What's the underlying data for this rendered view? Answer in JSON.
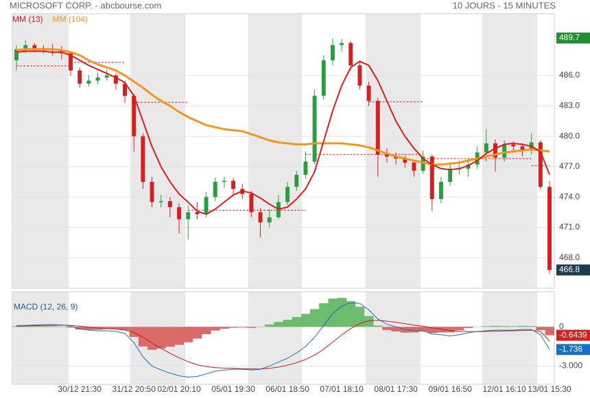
{
  "chart_data": {
    "type": "candlestick",
    "title": "MICROSOFT CORP. - abcbourse.com",
    "subtitle": "10 JOURS - 15 MINUTES",
    "categories": [
      null,
      null,
      null,
      null,
      null,
      null,
      null,
      "30/12 21:30",
      null,
      null,
      null,
      null,
      null,
      "31/12 20:50",
      null,
      null,
      null,
      null,
      "02/01 20:10",
      null,
      null,
      null,
      null,
      null,
      "05/01 19:30",
      null,
      null,
      null,
      null,
      null,
      "06/01 18:50",
      null,
      null,
      null,
      null,
      null,
      "07/01 18:10",
      null,
      null,
      null,
      null,
      null,
      "08/01 17:30",
      null,
      null,
      null,
      null,
      null,
      "09/01 16:50",
      null,
      null,
      null,
      null,
      null,
      "12/01 16:10",
      null,
      null,
      null,
      null,
      "13/01 15:30"
    ],
    "ohlc": [
      [
        487.5,
        489.0,
        486.5,
        488.6
      ],
      [
        488.6,
        489.5,
        488.2,
        489.0
      ],
      [
        489.0,
        489.2,
        488.3,
        488.7
      ],
      [
        488.7,
        489.0,
        488.2,
        488.6
      ],
      [
        488.6,
        489.1,
        488.0,
        488.5
      ],
      [
        488.5,
        488.9,
        487.6,
        488.2
      ],
      [
        488.2,
        488.4,
        486.0,
        486.5
      ],
      [
        486.5,
        486.8,
        484.8,
        485.2
      ],
      [
        485.2,
        486.0,
        484.9,
        485.5
      ],
      [
        485.5,
        486.3,
        485.1,
        485.8
      ],
      [
        485.8,
        486.6,
        485.5,
        486.0
      ],
      [
        486.0,
        486.2,
        484.6,
        485.2
      ],
      [
        485.2,
        485.5,
        483.3,
        484.0
      ],
      [
        484.0,
        484.2,
        478.5,
        480.0
      ],
      [
        480.0,
        480.3,
        474.8,
        475.5
      ],
      [
        475.5,
        476.0,
        473.0,
        473.5
      ],
      [
        473.5,
        474.2,
        473.0,
        473.6
      ],
      [
        473.6,
        474.0,
        472.0,
        473.0
      ],
      [
        473.0,
        473.4,
        470.4,
        471.8
      ],
      [
        471.8,
        473.2,
        469.8,
        472.5
      ],
      [
        472.5,
        473.5,
        471.8,
        472.3
      ],
      [
        472.3,
        474.5,
        472.0,
        474.0
      ],
      [
        474.0,
        475.9,
        473.6,
        475.5
      ],
      [
        475.5,
        476.0,
        474.9,
        475.6
      ],
      [
        475.6,
        475.9,
        474.2,
        474.8
      ],
      [
        474.8,
        475.3,
        473.8,
        474.3
      ],
      [
        474.3,
        474.6,
        472.0,
        472.5
      ],
      [
        472.5,
        472.9,
        470.0,
        471.5
      ],
      [
        471.5,
        472.8,
        471.0,
        472.0
      ],
      [
        472.0,
        474.2,
        471.8,
        473.5
      ],
      [
        473.5,
        475.5,
        473.2,
        475.0
      ],
      [
        475.0,
        476.6,
        474.6,
        476.2
      ],
      [
        476.2,
        478.5,
        475.8,
        477.5
      ],
      [
        477.5,
        484.6,
        477.2,
        484.0
      ],
      [
        484.0,
        488.0,
        483.6,
        487.5
      ],
      [
        487.5,
        489.7,
        487.0,
        489.0
      ],
      [
        489.0,
        489.6,
        488.4,
        489.2
      ],
      [
        489.2,
        489.4,
        486.5,
        487.0
      ],
      [
        487.0,
        487.4,
        484.6,
        485.0
      ],
      [
        485.0,
        485.4,
        483.0,
        483.5
      ],
      [
        483.5,
        483.8,
        476.0,
        478.2
      ],
      [
        478.2,
        478.8,
        477.4,
        478.0
      ],
      [
        478.0,
        478.4,
        477.2,
        477.8
      ],
      [
        477.8,
        478.1,
        476.9,
        477.4
      ],
      [
        477.4,
        477.6,
        476.0,
        476.6
      ],
      [
        476.6,
        478.6,
        476.3,
        478.0
      ],
      [
        478.0,
        478.2,
        472.6,
        473.8
      ],
      [
        473.8,
        476.0,
        473.4,
        475.5
      ],
      [
        475.5,
        477.2,
        475.1,
        476.8
      ],
      [
        476.8,
        477.6,
        476.2,
        476.8
      ],
      [
        476.8,
        477.8,
        476.0,
        477.2
      ],
      [
        477.2,
        479.0,
        476.8,
        478.4
      ],
      [
        478.4,
        480.7,
        477.5,
        479.3
      ],
      [
        479.3,
        479.7,
        476.5,
        477.9
      ],
      [
        477.9,
        479.6,
        477.5,
        479.2
      ],
      [
        479.2,
        479.5,
        478.4,
        479.0
      ],
      [
        479.0,
        479.3,
        478.0,
        478.6
      ],
      [
        478.6,
        480.3,
        478.2,
        479.4
      ],
      [
        479.4,
        479.6,
        474.8,
        475.0
      ],
      [
        475.0,
        475.6,
        466.4,
        466.8
      ]
    ],
    "up_color": "#2a9d3f",
    "down_color": "#d42020",
    "ylim": [
      465.0,
      492.1
    ],
    "yticks": [
      {
        "value": 468,
        "label": "468.0"
      },
      {
        "value": 471,
        "label": "471.0"
      },
      {
        "value": 474,
        "label": "474.0"
      },
      {
        "value": 477,
        "label": "477.0"
      },
      {
        "value": 480,
        "label": "480.0"
      },
      {
        "value": 483,
        "label": "483.0"
      },
      {
        "value": 486,
        "label": "486.0"
      }
    ],
    "grid": true,
    "overlays": [
      {
        "name": "MM (13)",
        "color": "#e31a1a",
        "values": [
          488.3,
          488.4,
          488.4,
          488.4,
          488.3,
          488.3,
          488.0,
          487.5,
          487.0,
          486.6,
          486.2,
          485.8,
          485.3,
          484.0,
          481.5,
          479.0,
          477.0,
          475.5,
          474.3,
          473.5,
          472.6,
          472.3,
          472.8,
          473.5,
          474.2,
          474.6,
          474.4,
          473.9,
          473.3,
          472.8,
          473.0,
          473.8,
          474.8,
          476.5,
          479.5,
          482.5,
          485.0,
          486.8,
          487.4,
          487.0,
          485.5,
          483.5,
          481.5,
          480.0,
          478.8,
          477.8,
          477.2,
          476.8,
          476.7,
          476.8,
          477.1,
          477.6,
          478.3,
          478.8,
          479.2,
          479.3,
          479.2,
          479.0,
          478.5,
          476.2
        ]
      },
      {
        "name": "MM (104)",
        "color": "#f7941d",
        "values": [
          488.5,
          488.6,
          488.6,
          488.6,
          488.6,
          488.5,
          488.3,
          488.0,
          487.5,
          487.1,
          486.8,
          486.5,
          486.0,
          485.4,
          484.8,
          484.1,
          483.5,
          483.0,
          482.4,
          481.9,
          481.5,
          481.1,
          480.9,
          480.7,
          480.6,
          480.5,
          480.2,
          479.9,
          479.6,
          479.4,
          479.3,
          479.2,
          479.2,
          479.3,
          479.3,
          479.3,
          479.3,
          479.2,
          479.1,
          478.9,
          478.6,
          478.3,
          478.0,
          477.8,
          477.6,
          477.4,
          477.2,
          477.2,
          477.3,
          477.4,
          477.6,
          477.8,
          478.0,
          478.2,
          478.4,
          478.5,
          478.6,
          478.7,
          478.6,
          478.5
        ]
      }
    ],
    "levels": {
      "color": "#d42020",
      "items": [
        {
          "value": 487.3,
          "from": 6,
          "to": 12
        },
        {
          "value": 486.95,
          "from": 0,
          "to": 6
        },
        {
          "value": 483.35,
          "from": 13,
          "to": 19
        },
        {
          "value": 472.7,
          "from": 19,
          "to": 32
        },
        {
          "value": 478.2,
          "from": 32,
          "to": 45
        },
        {
          "value": 483.4,
          "from": 39,
          "to": 45
        },
        {
          "value": 477.8,
          "from": 45,
          "to": 57
        },
        {
          "value": 477.1,
          "from": 57,
          "to": 59
        }
      ]
    },
    "high_label": {
      "value": 489.7,
      "label": "489.7",
      "color": "#1f8f2f"
    },
    "last_label": {
      "value": 466.8,
      "label": "466.8",
      "color": "#1c3d4f"
    },
    "macd": {
      "title": "MACD (12, 26, 9)",
      "ylim": [
        -4.4,
        2.7
      ],
      "yticks": [
        0,
        {
          "value": -3,
          "label": "-3.000"
        }
      ],
      "macd": {
        "color": "#1a6fc4",
        "last_label": "-1.736",
        "values": [
          0.1,
          0.12,
          0.15,
          0.17,
          0.17,
          0.15,
          0.05,
          -0.15,
          -0.25,
          -0.3,
          -0.3,
          -0.35,
          -0.5,
          -1.2,
          -2.3,
          -3.0,
          -3.3,
          -3.55,
          -3.75,
          -3.85,
          -3.8,
          -3.6,
          -3.4,
          -3.3,
          -3.25,
          -3.25,
          -3.3,
          -3.25,
          -3.0,
          -2.7,
          -2.4,
          -2.0,
          -1.5,
          -0.8,
          0.1,
          1.0,
          1.6,
          1.85,
          1.8,
          1.3,
          0.6,
          0.2,
          0.0,
          -0.2,
          -0.3,
          -0.3,
          -0.55,
          -0.6,
          -0.7,
          -0.6,
          -0.45,
          -0.35,
          -0.3,
          -0.25,
          -0.25,
          -0.25,
          -0.2,
          -0.2,
          -0.6,
          -1.736
        ]
      },
      "signal": {
        "color": "#c81e1e",
        "values": [
          0.05,
          0.07,
          0.09,
          0.11,
          0.12,
          0.13,
          0.11,
          0.05,
          -0.02,
          -0.08,
          -0.13,
          -0.17,
          -0.24,
          -0.43,
          -0.8,
          -1.24,
          -1.65,
          -2.03,
          -2.37,
          -2.67,
          -2.9,
          -3.04,
          -3.12,
          -3.16,
          -3.18,
          -3.2,
          -3.22,
          -3.23,
          -3.18,
          -3.08,
          -2.94,
          -2.75,
          -2.5,
          -2.16,
          -1.71,
          -1.17,
          -0.62,
          -0.13,
          0.26,
          0.47,
          0.5,
          0.44,
          0.35,
          0.24,
          0.13,
          0.05,
          -0.07,
          -0.17,
          -0.28,
          -0.34,
          -0.36,
          -0.36,
          -0.35,
          -0.33,
          -0.31,
          -0.3,
          -0.28,
          -0.26,
          -0.35,
          -1.0921
        ]
      },
      "histogram": {
        "up_color": "#6dbb6d",
        "down_color": "#d86a6a",
        "last_label": "-0.6439",
        "values": [
          0.05,
          0.05,
          0.06,
          0.06,
          0.05,
          0.02,
          -0.06,
          -0.2,
          -0.23,
          -0.22,
          -0.17,
          -0.18,
          -0.26,
          -0.77,
          -1.5,
          -1.76,
          -1.65,
          -1.52,
          -1.38,
          -1.18,
          -0.9,
          -0.56,
          -0.28,
          -0.14,
          -0.07,
          -0.05,
          -0.08,
          -0.02,
          0.18,
          0.38,
          0.54,
          0.75,
          1.0,
          1.36,
          1.81,
          2.17,
          2.22,
          1.98,
          1.54,
          0.83,
          0.1,
          -0.24,
          -0.35,
          -0.44,
          -0.43,
          -0.35,
          -0.48,
          -0.43,
          -0.42,
          -0.26,
          -0.09,
          0.01,
          0.05,
          0.08,
          0.06,
          0.05,
          0.08,
          0.06,
          -0.25,
          -0.6439
        ]
      }
    }
  }
}
